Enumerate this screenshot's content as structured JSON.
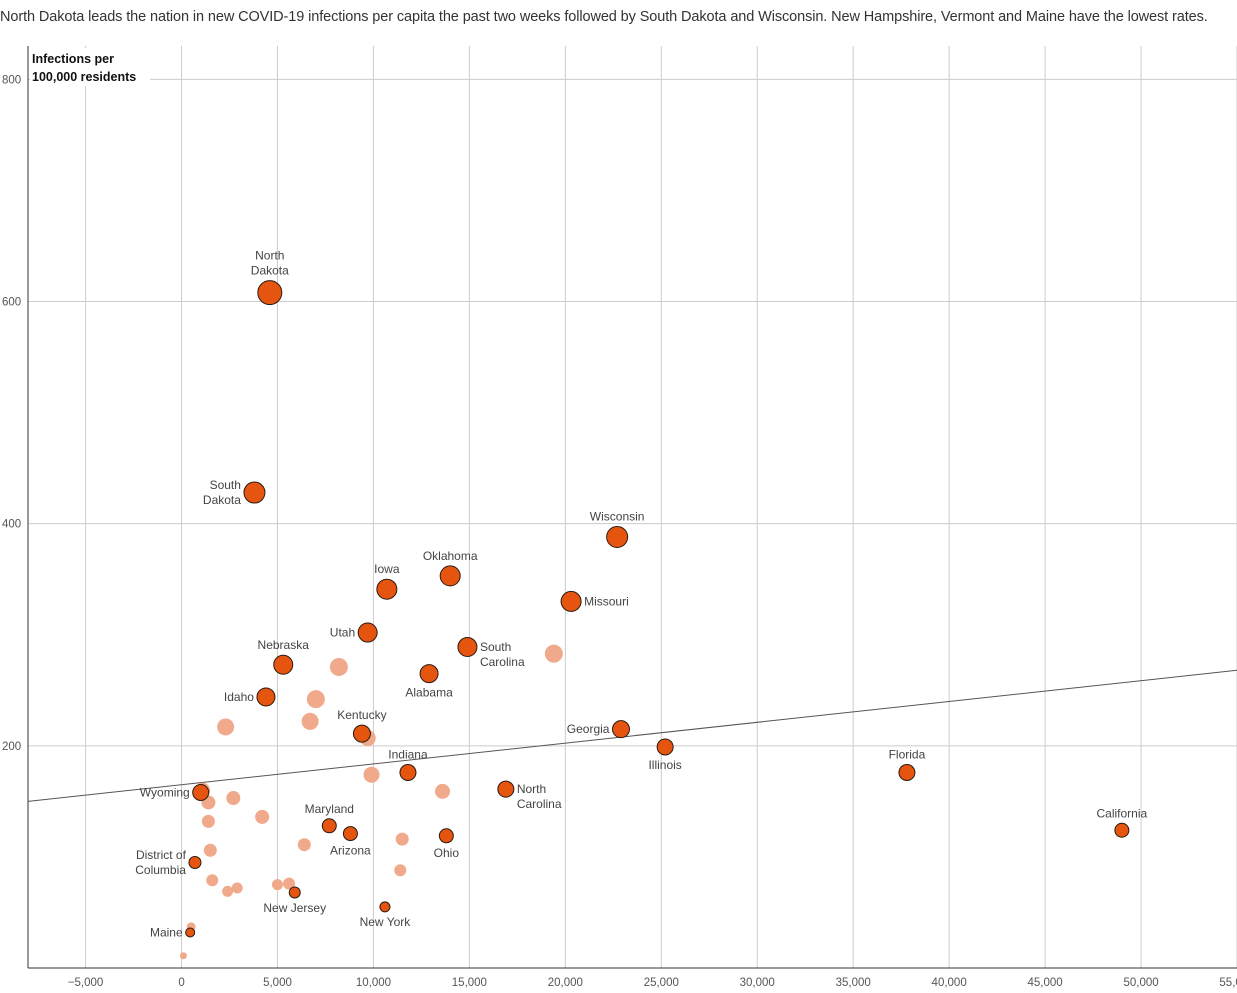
{
  "headline": "North Dakota leads the nation in new COVID-19 infections per capita the past two weeks followed by South Dakota and Wisconsin. New Hampshire, Vermont and Maine have the lowest rates.",
  "colors": {
    "highlight": "#e65510",
    "muted": "#f0a98a",
    "grid": "#cccccc",
    "stroke": "#2a1a10",
    "trend": "#555555"
  },
  "chart_data": {
    "type": "scatter",
    "title": "North Dakota leads the nation in new COVID-19 infections per capita the past two weeks followed by South Dakota and Wisconsin. New Hampshire, Vermont and Maine have the lowest rates.",
    "ylabel_lines": [
      "Infections per",
      "100,000 residents"
    ],
    "xlabel": "",
    "xlim": [
      -8000,
      55000
    ],
    "ylim": [
      0,
      830
    ],
    "x_ticks": [
      -5000,
      0,
      5000,
      10000,
      15000,
      20000,
      25000,
      30000,
      35000,
      40000,
      45000,
      50000,
      55000
    ],
    "x_tick_labels": [
      "−5,000",
      "0",
      "5,000",
      "10,000",
      "15,000",
      "20,000",
      "25,000",
      "30,000",
      "35,000",
      "40,000",
      "45,000",
      "50,000",
      "55,000"
    ],
    "y_ticks": [
      200,
      400,
      600,
      800
    ],
    "y_tick_labels": [
      "200",
      "400",
      "600",
      "800"
    ],
    "trendline": {
      "x": [
        -8000,
        55000
      ],
      "y": [
        150,
        268
      ]
    },
    "highlighted": [
      {
        "name": "North Dakota",
        "label_lines": [
          "North",
          "Dakota"
        ],
        "x": 4600,
        "y": 608,
        "size": 12,
        "label_pos": "above"
      },
      {
        "name": "South Dakota",
        "label_lines": [
          "South",
          "Dakota"
        ],
        "x": 3800,
        "y": 428,
        "size": 10.5,
        "label_pos": "left"
      },
      {
        "name": "Wisconsin",
        "label_lines": [
          "Wisconsin"
        ],
        "x": 22700,
        "y": 388,
        "size": 10.5,
        "label_pos": "above"
      },
      {
        "name": "Oklahoma",
        "label_lines": [
          "Oklahoma"
        ],
        "x": 14000,
        "y": 353,
        "size": 10,
        "label_pos": "above"
      },
      {
        "name": "Iowa",
        "label_lines": [
          "Iowa"
        ],
        "x": 10700,
        "y": 341,
        "size": 10,
        "label_pos": "above"
      },
      {
        "name": "Missouri",
        "label_lines": [
          "Missouri"
        ],
        "x": 20300,
        "y": 330,
        "size": 10,
        "label_pos": "right"
      },
      {
        "name": "Utah",
        "label_lines": [
          "Utah"
        ],
        "x": 9700,
        "y": 302,
        "size": 9.5,
        "label_pos": "left"
      },
      {
        "name": "South Carolina",
        "label_lines": [
          "South",
          "Carolina"
        ],
        "x": 14900,
        "y": 289,
        "size": 9.5,
        "label_pos": "right"
      },
      {
        "name": "Nebraska",
        "label_lines": [
          "Nebraska"
        ],
        "x": 5300,
        "y": 273,
        "size": 9.5,
        "label_pos": "above"
      },
      {
        "name": "Alabama",
        "label_lines": [
          "Alabama"
        ],
        "x": 12900,
        "y": 265,
        "size": 9,
        "label_pos": "below"
      },
      {
        "name": "Idaho",
        "label_lines": [
          "Idaho"
        ],
        "x": 4400,
        "y": 244,
        "size": 9,
        "label_pos": "left"
      },
      {
        "name": "Georgia",
        "label_lines": [
          "Georgia"
        ],
        "x": 22900,
        "y": 215,
        "size": 8.5,
        "label_pos": "left"
      },
      {
        "name": "Kentucky",
        "label_lines": [
          "Kentucky"
        ],
        "x": 9400,
        "y": 211,
        "size": 8.5,
        "label_pos": "above"
      },
      {
        "name": "Illinois",
        "label_lines": [
          "Illinois"
        ],
        "x": 25200,
        "y": 199,
        "size": 8,
        "label_pos": "below"
      },
      {
        "name": "Indiana",
        "label_lines": [
          "Indiana"
        ],
        "x": 11800,
        "y": 176,
        "size": 8,
        "label_pos": "above"
      },
      {
        "name": "Florida",
        "label_lines": [
          "Florida"
        ],
        "x": 37800,
        "y": 176,
        "size": 8,
        "label_pos": "above"
      },
      {
        "name": "North Carolina",
        "label_lines": [
          "North",
          "Carolina"
        ],
        "x": 16900,
        "y": 161,
        "size": 8,
        "label_pos": "right"
      },
      {
        "name": "Wyoming",
        "label_lines": [
          "Wyoming"
        ],
        "x": 1000,
        "y": 158,
        "size": 8,
        "label_pos": "left"
      },
      {
        "name": "Maryland",
        "label_lines": [
          "Maryland"
        ],
        "x": 7700,
        "y": 128,
        "size": 7,
        "label_pos": "above"
      },
      {
        "name": "California",
        "label_lines": [
          "California"
        ],
        "x": 49000,
        "y": 124,
        "size": 7,
        "label_pos": "above"
      },
      {
        "name": "Arizona",
        "label_lines": [
          "Arizona"
        ],
        "x": 8800,
        "y": 121,
        "size": 7,
        "label_pos": "below"
      },
      {
        "name": "Ohio",
        "label_lines": [
          "Ohio"
        ],
        "x": 13800,
        "y": 119,
        "size": 7,
        "label_pos": "below"
      },
      {
        "name": "District of Columbia",
        "label_lines": [
          "District of",
          "Columbia"
        ],
        "x": 700,
        "y": 95,
        "size": 6,
        "label_pos": "left"
      },
      {
        "name": "New Jersey",
        "label_lines": [
          "New Jersey"
        ],
        "x": 5900,
        "y": 68,
        "size": 5.5,
        "label_pos": "below"
      },
      {
        "name": "New York",
        "label_lines": [
          "New York"
        ],
        "x": 10600,
        "y": 55,
        "size": 5,
        "label_pos": "below"
      },
      {
        "name": "Maine",
        "label_lines": [
          "Maine"
        ],
        "x": 450,
        "y": 32,
        "size": 4.5,
        "label_pos": "left"
      }
    ],
    "others": [
      {
        "x": 19400,
        "y": 283,
        "size": 9
      },
      {
        "x": 8200,
        "y": 271,
        "size": 9
      },
      {
        "x": 7000,
        "y": 242,
        "size": 9
      },
      {
        "x": 6700,
        "y": 222,
        "size": 8.5
      },
      {
        "x": 2300,
        "y": 217,
        "size": 8.5
      },
      {
        "x": 9700,
        "y": 207,
        "size": 8
      },
      {
        "x": 9900,
        "y": 174,
        "size": 8
      },
      {
        "x": 13600,
        "y": 159,
        "size": 7.5
      },
      {
        "x": 1100,
        "y": 160,
        "size": 7.5
      },
      {
        "x": 2700,
        "y": 153,
        "size": 7
      },
      {
        "x": 1400,
        "y": 149,
        "size": 7
      },
      {
        "x": 4200,
        "y": 136,
        "size": 7
      },
      {
        "x": 1400,
        "y": 132,
        "size": 6.5
      },
      {
        "x": 11500,
        "y": 116,
        "size": 6.5
      },
      {
        "x": 6400,
        "y": 111,
        "size": 6.5
      },
      {
        "x": 1500,
        "y": 106,
        "size": 6.5
      },
      {
        "x": 11400,
        "y": 88,
        "size": 6
      },
      {
        "x": 1600,
        "y": 79,
        "size": 6
      },
      {
        "x": 5600,
        "y": 76,
        "size": 6
      },
      {
        "x": 5000,
        "y": 75,
        "size": 5.5
      },
      {
        "x": 2900,
        "y": 72,
        "size": 5.5
      },
      {
        "x": 2400,
        "y": 69,
        "size": 5.5
      },
      {
        "x": 500,
        "y": 37,
        "size": 4.5
      },
      {
        "x": 100,
        "y": 11,
        "size": 3.5
      }
    ]
  }
}
